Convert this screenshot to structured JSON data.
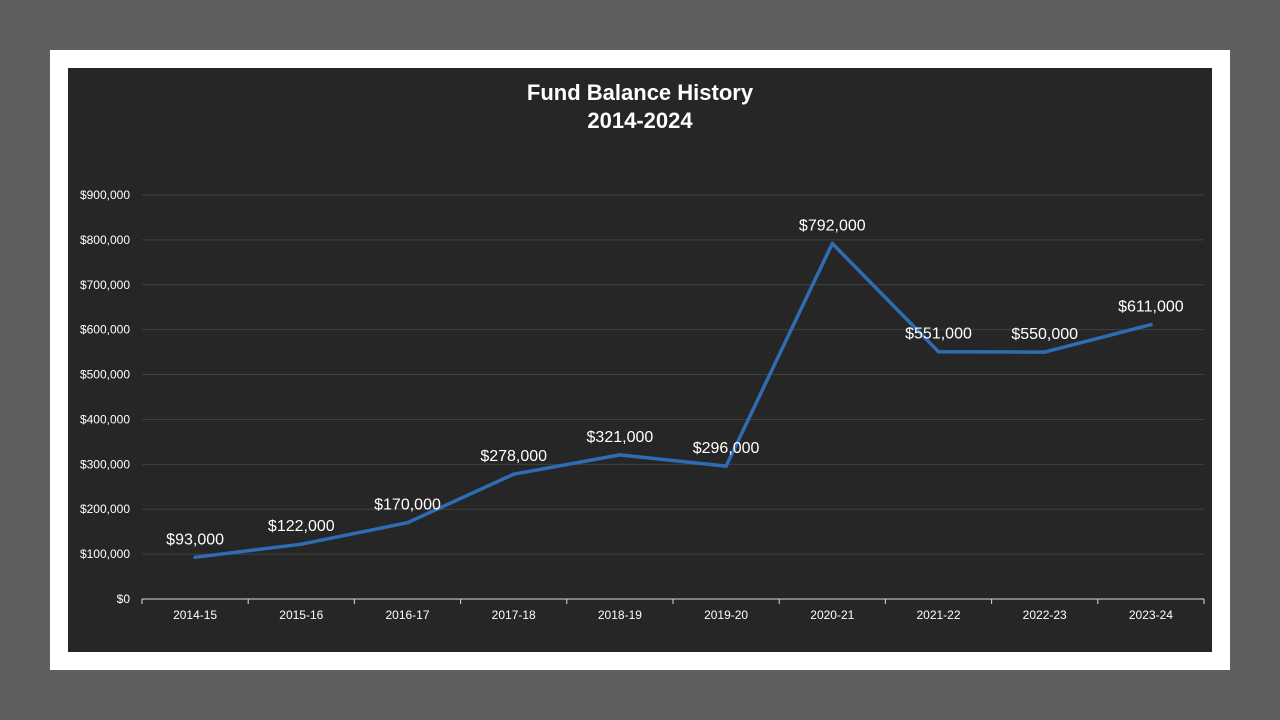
{
  "chart_data": {
    "type": "line",
    "title": "Fund Balance History",
    "subtitle": "2014-2024",
    "xlabel": "",
    "ylabel": "",
    "categories": [
      "2014-15",
      "2015-16",
      "2016-17",
      "2017-18",
      "2018-19",
      "2019-20",
      "2020-21",
      "2021-22",
      "2022-23",
      "2023-24"
    ],
    "series": [
      {
        "values": [
          93000,
          122000,
          170000,
          278000,
          321000,
          296000,
          792000,
          551000,
          550000,
          611000
        ],
        "labels": [
          "$93,000",
          "$122,000",
          "$170,000",
          "$278,000",
          "$321,000",
          "$296,000",
          "$792,000",
          "$551,000",
          "$550,000",
          "$611,000"
        ],
        "color": "#2e6db4"
      }
    ],
    "ylim": [
      0,
      900000
    ],
    "yticks": [
      0,
      100000,
      200000,
      300000,
      400000,
      500000,
      600000,
      700000,
      800000,
      900000
    ],
    "ytick_labels": [
      "$0",
      "$100,000",
      "$200,000",
      "$300,000",
      "$400,000",
      "$500,000",
      "$600,000",
      "$700,000",
      "$800,000",
      "$900,000"
    ],
    "grid": true,
    "legend": "none",
    "colors": {
      "background": "#262626",
      "frame": "#ffffff",
      "outer": "#5f5f5f",
      "grid": "#404040",
      "text": "#ffffff"
    }
  }
}
